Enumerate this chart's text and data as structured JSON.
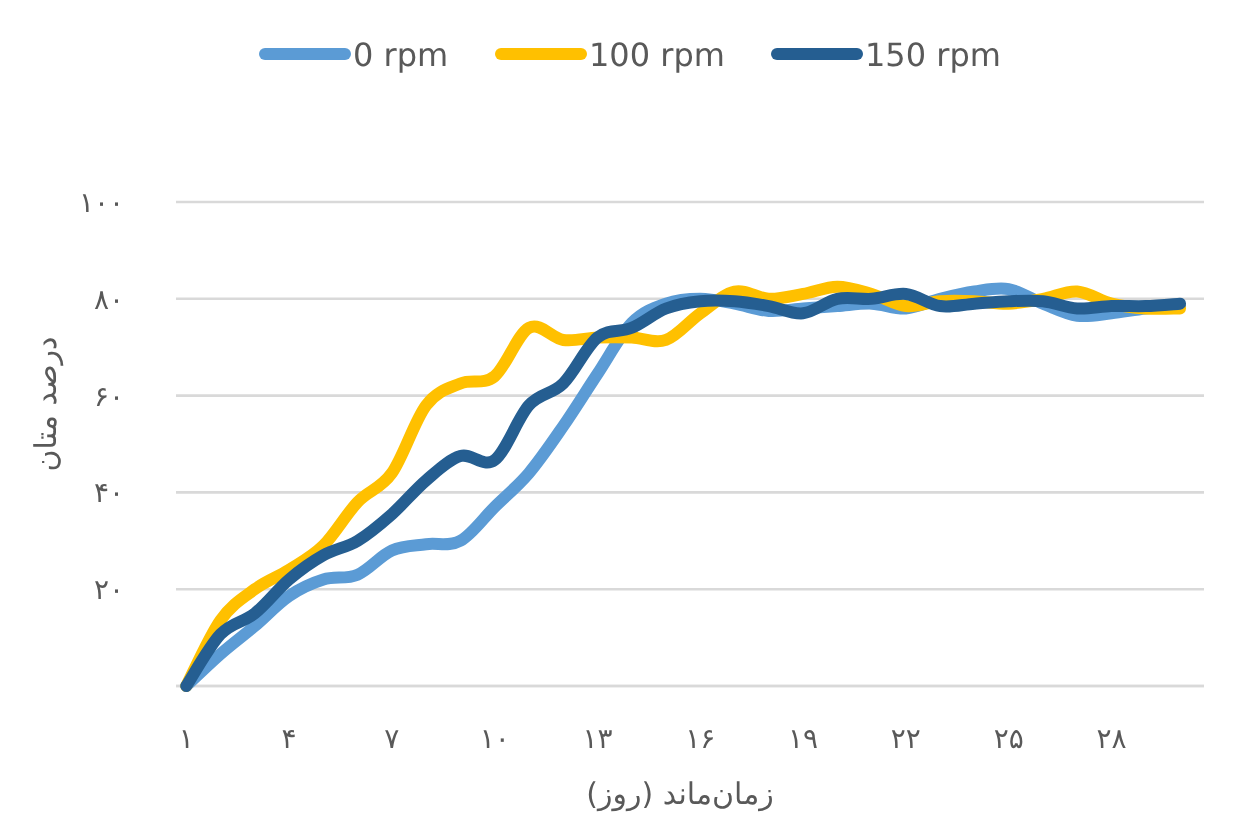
{
  "chart_data": {
    "type": "line",
    "xlabel": "زمان‌ماند (روز)",
    "ylabel": "درصد متان",
    "categories": [
      "۱",
      null,
      null,
      "۴",
      null,
      null,
      "۷",
      null,
      null,
      "۱۰",
      null,
      null,
      "۱۳",
      null,
      null,
      "۱۶",
      null,
      null,
      "۱۹",
      null,
      null,
      "۲۲",
      null,
      null,
      "۲۵",
      null,
      null,
      "۲۸",
      null,
      null
    ],
    "series": [
      {
        "name": "0 rpm",
        "color": "#5b9bd5",
        "values": [
          0,
          6.6,
          12.4,
          18.6,
          22,
          23,
          28,
          29.3,
          30,
          37,
          44,
          53.7,
          64.5,
          75,
          79,
          80,
          79,
          77.5,
          78,
          78.5,
          79,
          78,
          80,
          81.5,
          82,
          79,
          76.5,
          77,
          78,
          78.5
        ]
      },
      {
        "name": "100 rpm",
        "color": "#ffc000",
        "values": [
          0,
          13.6,
          20,
          24,
          29,
          38,
          44,
          58,
          62.5,
          64,
          74,
          71.5,
          72,
          72,
          71.5,
          77,
          81.5,
          80,
          81,
          82.5,
          81,
          78.5,
          79.5,
          79.5,
          79,
          80,
          81.5,
          79,
          78,
          78
        ]
      },
      {
        "name": "150 rpm",
        "color": "#255e91",
        "values": [
          0,
          10.7,
          15,
          22,
          27,
          30,
          35.5,
          42.5,
          47.5,
          46.7,
          58,
          62.5,
          72,
          74,
          78,
          79.5,
          79.5,
          78.5,
          77,
          80,
          80,
          81,
          78.5,
          79,
          79.5,
          79.5,
          78,
          78.5,
          78.5,
          79
        ]
      }
    ],
    "ylim": [
      0,
      100
    ],
    "yticks": [
      {
        "value": 0,
        "label": null
      },
      {
        "value": 20,
        "label": "۲۰"
      },
      {
        "value": 40,
        "label": "۴۰"
      },
      {
        "value": 60,
        "label": "۶۰"
      },
      {
        "value": 80,
        "label": "۸۰"
      },
      {
        "value": 100,
        "label": "۱۰۰"
      }
    ],
    "grid": "y",
    "legend": "top",
    "line_style": "solid"
  }
}
